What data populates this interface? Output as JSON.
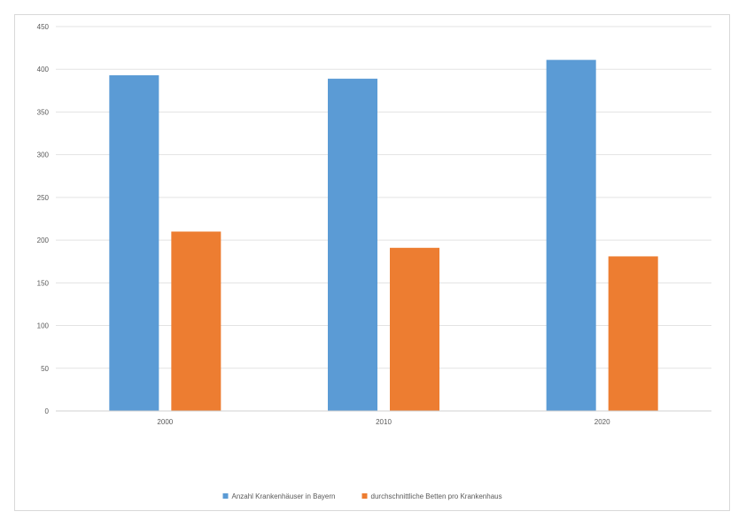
{
  "chart_data": {
    "type": "bar",
    "categories": [
      "2000",
      "2010",
      "2020"
    ],
    "series": [
      {
        "name": "Anzahl Krankenhäuser in Bayern",
        "values": [
          393,
          389,
          411
        ],
        "color": "#5b9bd5"
      },
      {
        "name": "durchschnittliche Betten pro Krankenhaus",
        "values": [
          210,
          191,
          181
        ],
        "color": "#ed7d31"
      }
    ],
    "ylim": [
      0,
      450
    ],
    "yticks": [
      0,
      50,
      100,
      150,
      200,
      250,
      300,
      350,
      400,
      450
    ],
    "grid": true,
    "legend": "bottom-center"
  }
}
